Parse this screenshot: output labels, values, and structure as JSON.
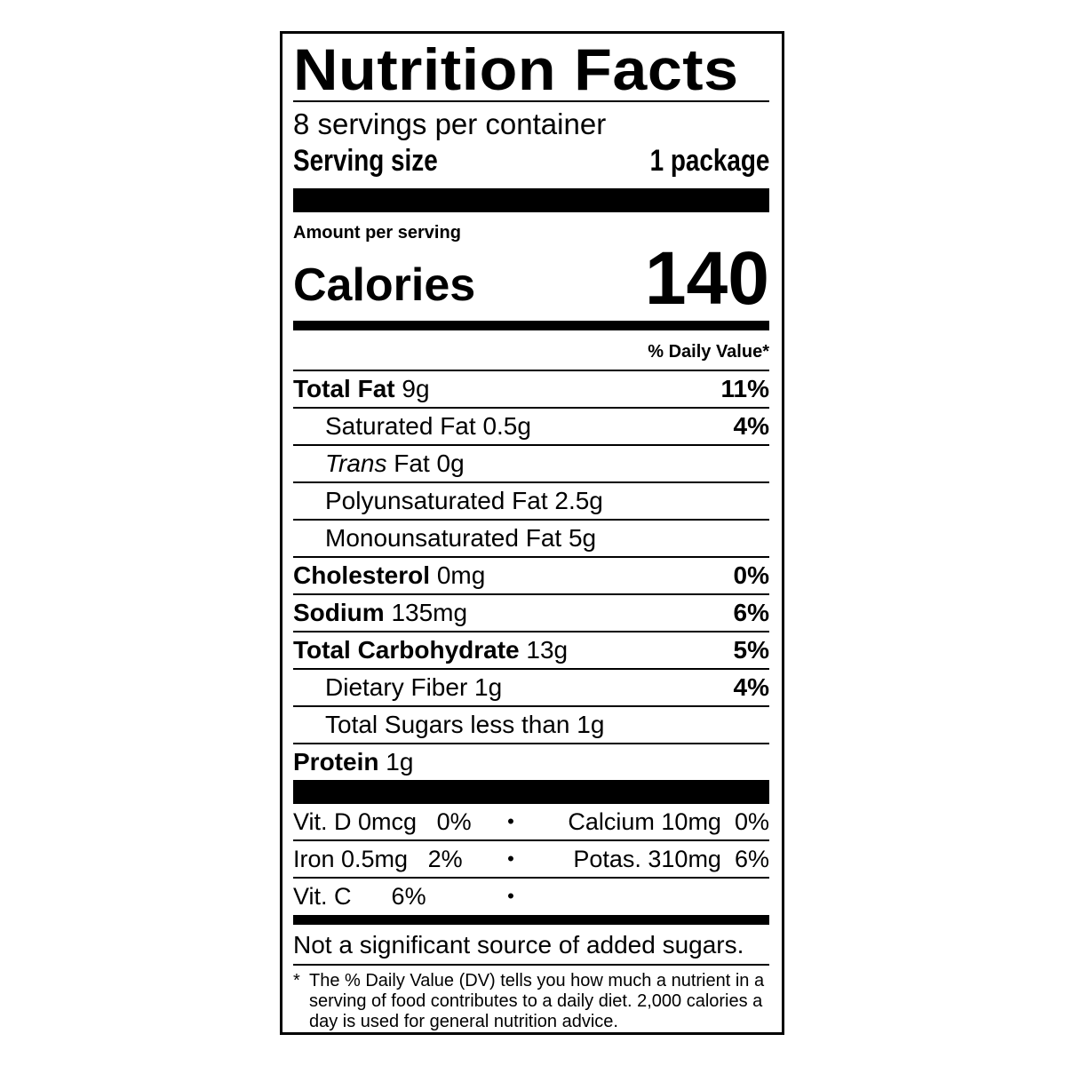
{
  "title": "Nutrition Facts",
  "servings_per_container": "8 servings per container",
  "serving_size": {
    "label": "Serving size",
    "value": "1 package"
  },
  "amount_per_serving": "Amount per serving",
  "calories": {
    "label": "Calories",
    "value": "140"
  },
  "daily_value_header": "% Daily Value*",
  "nutrients": [
    {
      "name": "Total Fat",
      "amount": "9g",
      "dv": "11%",
      "bold": true
    },
    {
      "name": "Saturated Fat",
      "amount": "0.5g",
      "dv": "4%"
    },
    {
      "name_italic": "Trans",
      "name": "Fat",
      "amount": "0g",
      "dv": ""
    },
    {
      "name": "Polyunsaturated Fat",
      "amount": "2.5g",
      "dv": ""
    },
    {
      "name": "Monounsaturated Fat",
      "amount": "5g",
      "dv": ""
    },
    {
      "name": "Cholesterol",
      "amount": "0mg",
      "dv": "0%",
      "bold": true
    },
    {
      "name": "Sodium",
      "amount": "135mg",
      "dv": "6%",
      "bold": true
    },
    {
      "name": "Total Carbohydrate",
      "amount": "13g",
      "dv": "5%",
      "bold": true
    },
    {
      "name": "Dietary Fiber",
      "amount": "1g",
      "dv": "4%"
    },
    {
      "name": "Total Sugars",
      "amount": "less than 1g",
      "dv": ""
    },
    {
      "name": "Protein",
      "amount": "1g",
      "dv": "",
      "bold": true
    }
  ],
  "vitamins": [
    {
      "left": "Vit. D 0mcg",
      "left_dv": "0%",
      "right": "Calcium 10mg",
      "right_dv": "0%"
    },
    {
      "left": "Iron 0.5mg",
      "left_dv": "2%",
      "right": "Potas. 310mg",
      "right_dv": "6%"
    },
    {
      "left": "Vit. C",
      "left_dv": "6%",
      "right": "",
      "right_dv": ""
    }
  ],
  "bullet": "•",
  "added_sugars_note": "Not a significant source of added sugars.",
  "footnote": {
    "star": "*",
    "text": "The % Daily Value (DV) tells you how much a nutrient in a serving of food contributes to a daily diet. 2,000 calories a day is used for general nutrition advice."
  }
}
